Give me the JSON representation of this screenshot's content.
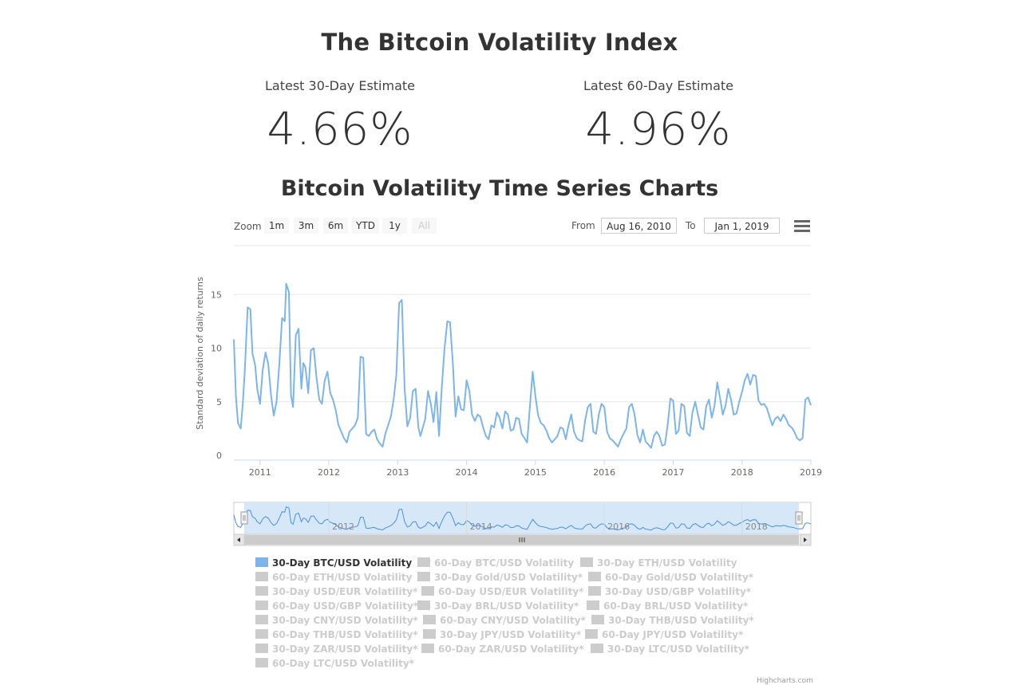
{
  "header": {
    "title": "The Bitcoin Volatility Index",
    "subtitle": "Bitcoin Volatility Time Series Charts"
  },
  "estimates": [
    {
      "label": "Latest 30-Day Estimate",
      "value": "4.66%"
    },
    {
      "label": "Latest 60-Day Estimate",
      "value": "4.96%"
    }
  ],
  "range_selector": {
    "zoom_label": "Zoom",
    "buttons": [
      "1m",
      "3m",
      "6m",
      "YTD",
      "1y",
      "All"
    ],
    "from_label": "From",
    "from_value": "Aug 16, 2010",
    "to_label": "To",
    "to_value": "Jan 1, 2019"
  },
  "icons": {
    "menu": "hamburger-menu-icon",
    "scroll_left": "arrow-left-icon",
    "scroll_right": "arrow-right-icon",
    "scroll_grip": "grip-icon"
  },
  "colors": {
    "series": "#7cb5ec",
    "navigator_fill": "#d6e8f8",
    "grid": "#e6e6e6",
    "legend_inactive": "#cccccc"
  },
  "chart_data": {
    "type": "line",
    "ylabel": "Standard deviation of daily returns",
    "ylim": [
      0,
      16
    ],
    "yticks": [
      0,
      5,
      10,
      15
    ],
    "xticks": [
      "2011",
      "2012",
      "2013",
      "2014",
      "2015",
      "2016",
      "2017",
      "2018",
      "2019"
    ],
    "navigator_xticks": [
      "2012",
      "2014",
      "2016",
      "2018"
    ],
    "grid": true,
    "legend_position": "bottom",
    "series": [
      {
        "name": "30-Day BTC/USD Volatility",
        "x": [
          2010.62,
          2010.65,
          2010.68,
          2010.72,
          2010.75,
          2010.78,
          2010.82,
          2010.86,
          2010.89,
          2010.93,
          2010.96,
          2011.0,
          2011.04,
          2011.08,
          2011.12,
          2011.16,
          2011.2,
          2011.24,
          2011.28,
          2011.32,
          2011.36,
          2011.38,
          2011.42,
          2011.45,
          2011.48,
          2011.52,
          2011.56,
          2011.6,
          2011.63,
          2011.66,
          2011.7,
          2011.74,
          2011.78,
          2011.82,
          2011.86,
          2011.9,
          2011.94,
          2011.98,
          2012.02,
          2012.06,
          2012.1,
          2012.14,
          2012.18,
          2012.22,
          2012.26,
          2012.3,
          2012.34,
          2012.38,
          2012.42,
          2012.46,
          2012.5,
          2012.54,
          2012.58,
          2012.62,
          2012.66,
          2012.7,
          2012.74,
          2012.78,
          2012.82,
          2012.86,
          2012.9,
          2012.94,
          2012.98,
          2013.02,
          2013.06,
          2013.1,
          2013.14,
          2013.18,
          2013.22,
          2013.26,
          2013.3,
          2013.33,
          2013.36,
          2013.4,
          2013.44,
          2013.48,
          2013.52,
          2013.56,
          2013.6,
          2013.64,
          2013.68,
          2013.72,
          2013.76,
          2013.8,
          2013.84,
          2013.88,
          2013.92,
          2013.96,
          2014.0,
          2014.04,
          2014.08,
          2014.12,
          2014.16,
          2014.2,
          2014.24,
          2014.28,
          2014.32,
          2014.36,
          2014.4,
          2014.44,
          2014.48,
          2014.52,
          2014.56,
          2014.6,
          2014.64,
          2014.68,
          2014.72,
          2014.76,
          2014.8,
          2014.84,
          2014.88,
          2014.92,
          2014.96,
          2015.0,
          2015.04,
          2015.08,
          2015.12,
          2015.16,
          2015.2,
          2015.24,
          2015.28,
          2015.32,
          2015.36,
          2015.4,
          2015.44,
          2015.48,
          2015.52,
          2015.56,
          2015.6,
          2015.64,
          2015.68,
          2015.72,
          2015.76,
          2015.8,
          2015.84,
          2015.88,
          2015.92,
          2015.96,
          2016.0,
          2016.04,
          2016.08,
          2016.12,
          2016.16,
          2016.2,
          2016.24,
          2016.28,
          2016.32,
          2016.36,
          2016.4,
          2016.44,
          2016.48,
          2016.52,
          2016.56,
          2016.6,
          2016.64,
          2016.68,
          2016.72,
          2016.76,
          2016.8,
          2016.84,
          2016.88,
          2016.92,
          2016.96,
          2017.0,
          2017.04,
          2017.08,
          2017.12,
          2017.16,
          2017.2,
          2017.24,
          2017.28,
          2017.32,
          2017.36,
          2017.4,
          2017.44,
          2017.48,
          2017.52,
          2017.56,
          2017.6,
          2017.64,
          2017.68,
          2017.72,
          2017.76,
          2017.8,
          2017.84,
          2017.88,
          2017.92,
          2017.96,
          2018.0,
          2018.04,
          2018.08,
          2018.12,
          2018.16,
          2018.2,
          2018.24,
          2018.28,
          2018.32,
          2018.36,
          2018.4,
          2018.44,
          2018.48,
          2018.52,
          2018.56,
          2018.6,
          2018.64,
          2018.68,
          2018.72,
          2018.76,
          2018.8,
          2018.84,
          2018.88,
          2018.92,
          2018.96,
          2019.0
        ],
        "y": [
          10.8,
          5.5,
          3.0,
          2.5,
          4.8,
          8.0,
          13.8,
          13.6,
          9.5,
          8.4,
          6.2,
          4.8,
          8.0,
          9.6,
          8.5,
          5.6,
          3.7,
          5.0,
          8.4,
          12.8,
          12.5,
          16.0,
          15.2,
          5.6,
          4.5,
          11.2,
          11.8,
          6.2,
          8.6,
          8.2,
          5.8,
          9.8,
          10.0,
          7.3,
          5.2,
          4.8,
          7.0,
          7.8,
          5.8,
          5.2,
          4.2,
          2.8,
          2.2,
          1.6,
          1.2,
          2.2,
          2.5,
          2.8,
          3.5,
          9.2,
          9.1,
          2.0,
          1.8,
          2.2,
          2.4,
          1.5,
          1.1,
          0.8,
          2.0,
          2.8,
          3.6,
          5.2,
          7.5,
          14.2,
          14.5,
          6.2,
          2.7,
          3.5,
          6.0,
          6.2,
          2.6,
          1.8,
          2.5,
          3.4,
          6.0,
          4.8,
          3.1,
          5.9,
          1.8,
          6.4,
          10.0,
          12.5,
          12.4,
          8.6,
          3.6,
          5.5,
          4.3,
          4.2,
          7.0,
          6.0,
          3.8,
          3.2,
          3.8,
          3.6,
          2.6,
          1.8,
          1.5,
          2.8,
          2.6,
          4.0,
          3.5,
          2.5,
          4.1,
          3.8,
          2.3,
          2.4,
          3.5,
          3.4,
          2.0,
          1.6,
          1.2,
          4.6,
          7.8,
          5.5,
          3.7,
          3.0,
          2.8,
          2.3,
          1.6,
          1.2,
          1.5,
          1.8,
          2.6,
          2.5,
          1.5,
          2.8,
          3.8,
          2.2,
          1.6,
          1.4,
          1.3,
          3.2,
          4.5,
          4.8,
          2.2,
          2.0,
          3.8,
          4.8,
          4.5,
          2.2,
          1.6,
          1.4,
          1.1,
          0.8,
          1.5,
          2.0,
          2.5,
          4.5,
          4.8,
          3.8,
          1.9,
          1.2,
          2.4,
          1.3,
          1.0,
          0.7,
          1.8,
          2.2,
          1.8,
          0.9,
          1.0,
          2.8,
          5.3,
          5.1,
          2.0,
          2.3,
          4.8,
          4.6,
          2.1,
          1.8,
          4.0,
          5.0,
          3.8,
          2.6,
          2.4,
          4.6,
          5.2,
          3.5,
          4.6,
          6.8,
          5.4,
          3.8,
          4.6,
          6.2,
          5.2,
          3.8,
          3.9,
          5.0,
          5.9,
          7.0,
          7.6,
          6.6,
          7.5,
          7.4,
          5.1,
          4.7,
          4.8,
          4.4,
          3.6,
          2.8,
          3.4,
          3.6,
          3.2,
          3.8,
          3.4,
          2.8,
          2.6,
          2.2,
          1.6,
          1.4,
          1.6,
          5.2,
          5.4,
          4.66
        ]
      }
    ]
  },
  "legend": [
    "30-Day BTC/USD Volatility",
    "60-Day BTC/USD Volatility",
    "30-Day ETH/USD Volatility",
    "60-Day ETH/USD Volatility",
    "30-Day Gold/USD Volatility*",
    "60-Day Gold/USD Volatility*",
    "30-Day USD/EUR Volatility*",
    "60-Day USD/EUR Volatility*",
    "30-Day USD/GBP Volatility*",
    "60-Day USD/GBP Volatility*",
    "30-Day BRL/USD Volatility*",
    "60-Day BRL/USD Volatility*",
    "30-Day CNY/USD Volatility*",
    "60-Day CNY/USD Volatility*",
    "30-Day THB/USD Volatility*",
    "60-Day THB/USD Volatility*",
    "30-Day JPY/USD Volatility*",
    "60-Day JPY/USD Volatility*",
    "30-Day ZAR/USD Volatility*",
    "60-Day ZAR/USD Volatility*",
    "30-Day LTC/USD Volatility*",
    "60-Day LTC/USD Volatility*"
  ],
  "credits": "Highcharts.com"
}
